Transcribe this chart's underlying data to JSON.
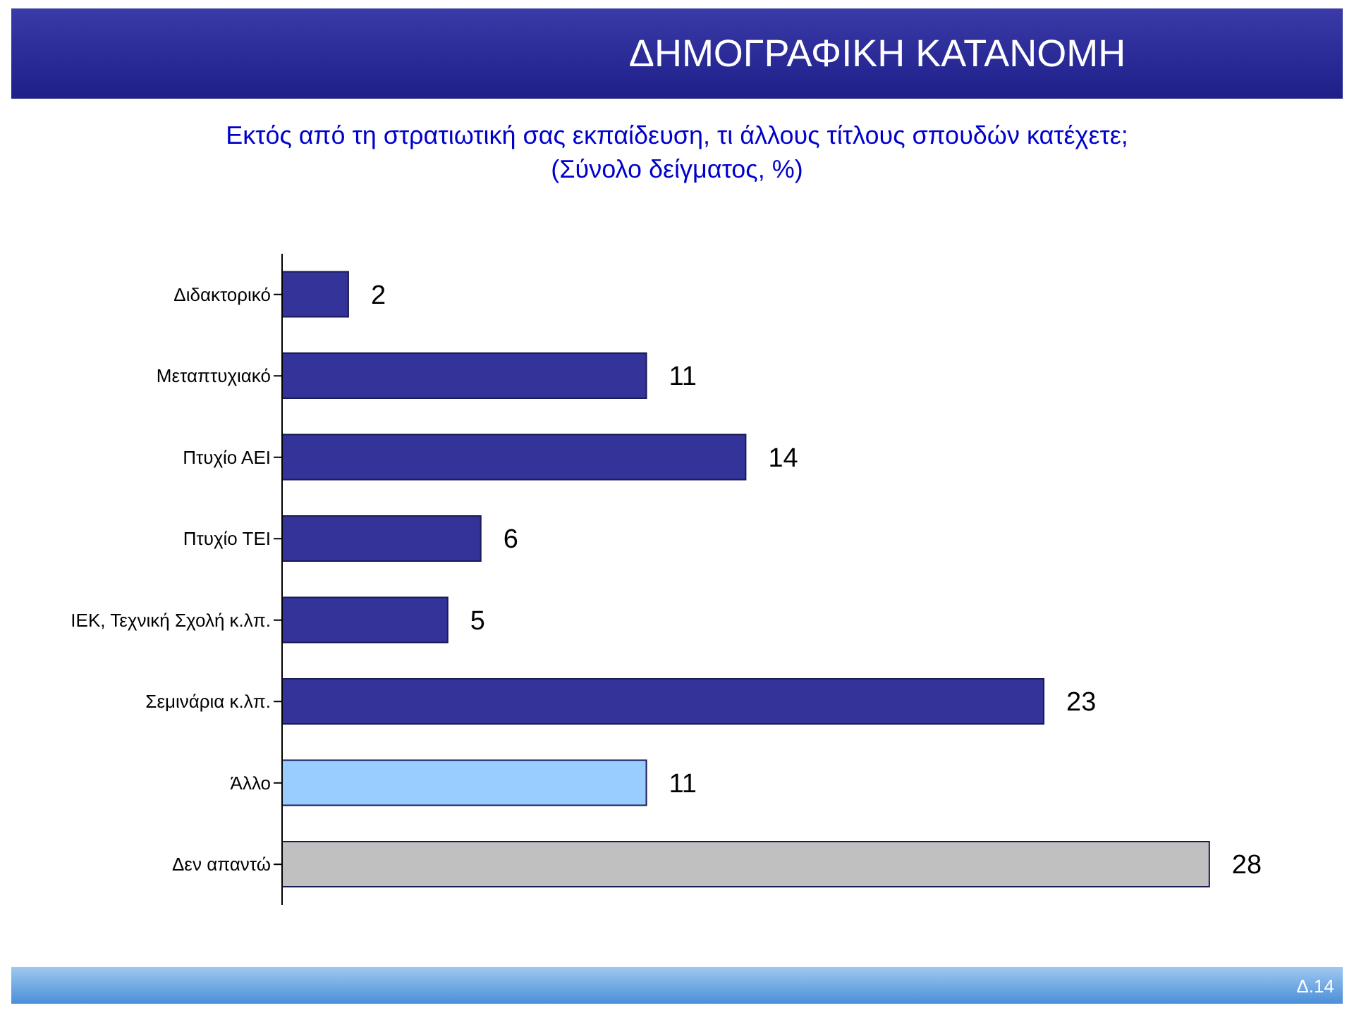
{
  "chart_data": {
    "type": "bar",
    "orientation": "horizontal",
    "title": "ΔΗΜΟΓΡΑΦΙΚΗ ΚΑΤΑΝΟΜΗ",
    "subtitle": "Εκτός από τη στρατιωτική σας εκπαίδευση, τι άλλους τίτλους σπουδών κατέχετε; (Σύνολο δείγματος, %)",
    "categories": [
      "Διδακτορικό",
      "Μεταπτυχιακό",
      "Πτυχίο ΑΕΙ",
      "Πτυχίο ΤΕΙ",
      "ΙΕΚ, Τεχνική Σχολή κ.λπ.",
      "Σεμινάρια κ.λπ.",
      "Άλλο",
      "Δεν απαντώ"
    ],
    "values": [
      2,
      11,
      14,
      6,
      5,
      23,
      11,
      28
    ],
    "colors": [
      "#333399",
      "#333399",
      "#333399",
      "#333399",
      "#333399",
      "#333399",
      "#99ccff",
      "#c0c0c0"
    ],
    "data_labels": true,
    "annotations": [
      "Δ.14"
    ]
  }
}
